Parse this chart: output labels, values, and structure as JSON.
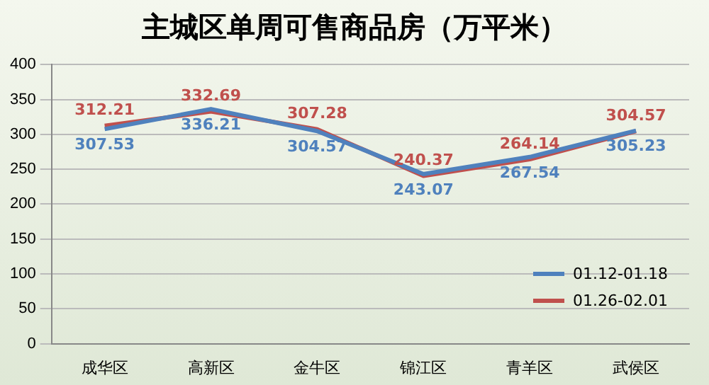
{
  "chart_data": {
    "type": "line",
    "title": "主城区单周可售商品房（万平米）",
    "categories": [
      "成华区",
      "高新区",
      "金牛区",
      "锦江区",
      "青羊区",
      "武侯区"
    ],
    "series": [
      {
        "name": "01.12-01.18",
        "color": "#4f81bd",
        "values": [
          307.53,
          336.21,
          304.57,
          243.07,
          267.54,
          305.23
        ]
      },
      {
        "name": "01.26-02.01",
        "color": "#c0504d",
        "values": [
          312.21,
          332.69,
          307.28,
          240.37,
          264.14,
          304.57
        ]
      }
    ],
    "ylim": [
      0,
      400
    ],
    "yticks": [
      0,
      50,
      100,
      150,
      200,
      250,
      300,
      350,
      400
    ],
    "grid": "y",
    "legend": "bottom right",
    "data_labels": true,
    "marker": "none",
    "line_style": "solid"
  }
}
